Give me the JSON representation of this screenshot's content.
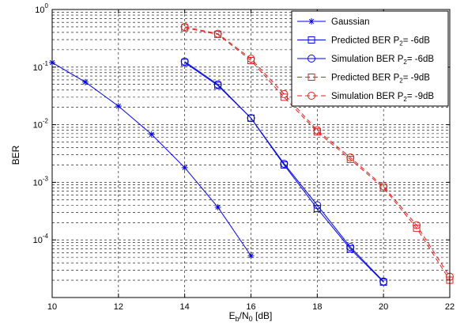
{
  "chart_data": {
    "type": "line",
    "xlabel": "E",
    "xlabel_sub": "b",
    "xlabel_mid": "/N",
    "xlabel_sub2": "0",
    "xlabel_tail": " [dB]",
    "ylabel": "BER",
    "xlim": [
      10,
      22
    ],
    "ylim": [
      1e-05,
      1
    ],
    "yscale": "log",
    "grid": true,
    "legend_position": "top-right",
    "x_ticks": [
      10,
      12,
      14,
      16,
      18,
      20,
      22
    ],
    "y_ticks": [
      {
        "value": 1,
        "base": "10",
        "exp": "0"
      },
      {
        "value": 0.1,
        "base": "10",
        "exp": "-1"
      },
      {
        "value": 0.01,
        "base": "10",
        "exp": "-2"
      },
      {
        "value": 0.001,
        "base": "10",
        "exp": "-3"
      },
      {
        "value": 0.0001,
        "base": "10",
        "exp": "-4"
      }
    ],
    "series": [
      {
        "name": "Gaussian",
        "legend_parts": [
          "Gaussian"
        ],
        "color": "#0000ff",
        "dash": "solid",
        "marker": "star",
        "x": [
          10,
          11,
          12,
          13,
          14,
          15,
          16
        ],
        "y": [
          0.12,
          0.055,
          0.021,
          0.0068,
          0.0018,
          0.00037,
          5.3e-05
        ]
      },
      {
        "name": "Predicted BER P2= -6dB",
        "legend_parts": [
          "Predicted BER P",
          "2",
          "= -6dB"
        ],
        "color": "#0000ff",
        "dash": "solid",
        "marker": "square",
        "x": [
          14,
          15,
          16,
          17,
          18,
          19,
          20
        ],
        "y": [
          0.12,
          0.048,
          0.013,
          0.002,
          0.00035,
          7e-05,
          1.85e-05
        ]
      },
      {
        "name": "Simulation BER P2= -6dB",
        "legend_parts": [
          "Simulation BER P",
          "2",
          "= -6dB"
        ],
        "color": "#0000ff",
        "dash": "solid",
        "marker": "circle",
        "x": [
          14,
          15,
          16,
          17,
          18,
          19,
          20
        ],
        "y": [
          0.125,
          0.05,
          0.013,
          0.0021,
          0.0004,
          7.5e-05,
          1.9e-05
        ]
      },
      {
        "name": "Predicted BER P2= -9dB",
        "legend_parts": [
          "Predicted BER P",
          "2",
          "= -9dB"
        ],
        "color": "#e8201c",
        "dash": "dashed",
        "marker": "square",
        "x": [
          14,
          15,
          16,
          17,
          18,
          19,
          20,
          21,
          22
        ],
        "y": [
          0.48,
          0.37,
          0.13,
          0.03,
          0.0075,
          0.0025,
          0.0008,
          0.00016,
          2e-05
        ]
      },
      {
        "name": "Simulation BER P2= -9dB",
        "legend_parts": [
          "Simulation BER P",
          "2",
          "= -9dB"
        ],
        "color": "#e8201c",
        "dash": "dashed",
        "marker": "circle",
        "x": [
          14,
          15,
          16,
          17,
          18,
          19,
          20,
          21,
          22
        ],
        "y": [
          0.5,
          0.38,
          0.14,
          0.034,
          0.008,
          0.0027,
          0.00085,
          0.00018,
          2.3e-05
        ]
      }
    ]
  }
}
